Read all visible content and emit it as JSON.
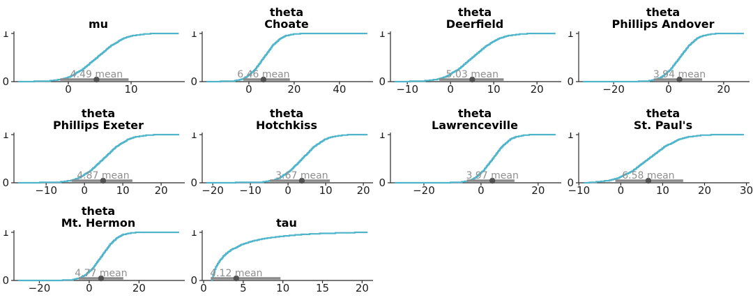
{
  "figure": {
    "description": "Grid of posterior cumulative distribution plots with mean point estimates and interval bars",
    "columns": 4,
    "rows": 3
  },
  "style": {
    "curve_color": "#4db4c9",
    "interval_color": "#8a8a8a",
    "point_color": "#515151",
    "mean_text_color": "#8f8f8f",
    "axis_color": "#282828",
    "tick_label_color": "#1c1c1c",
    "title_color": "#000000",
    "background": "#ffffff"
  },
  "chart_data": [
    {
      "id": "mu",
      "type": "ecdf",
      "title": "mu",
      "mean": 4.49,
      "mean_label": "4.49 mean",
      "x_range": [
        -8.67,
        18.33
      ],
      "x_ticks": [
        0,
        10
      ],
      "y_ticks": [
        0,
        1
      ],
      "interval": [
        -1.3,
        9.6
      ],
      "points": [
        [
          -8.0,
          0
        ],
        [
          -3.3,
          0.01
        ],
        [
          -1.0,
          0.05
        ],
        [
          0.2,
          0.1
        ],
        [
          2.2,
          0.25
        ],
        [
          4.5,
          0.5
        ],
        [
          6.8,
          0.75
        ],
        [
          8.8,
          0.9
        ],
        [
          10.0,
          0.95
        ],
        [
          12.3,
          0.99
        ],
        [
          13.5,
          0.998
        ],
        [
          17.6,
          1
        ]
      ]
    },
    {
      "id": "theta-choate",
      "type": "ecdf",
      "title": "theta\nChoate",
      "mean": 6.46,
      "mean_label": "6.46 mean",
      "x_range": [
        -20.6,
        54.2
      ],
      "x_ticks": [
        0,
        20,
        40
      ],
      "y_ticks": [
        0,
        1
      ],
      "interval": [
        -2.5,
        18.1
      ],
      "points": [
        [
          -18.7,
          0
        ],
        [
          -7.1,
          0.01
        ],
        [
          -3.1,
          0.05
        ],
        [
          -1.0,
          0.1
        ],
        [
          2.6,
          0.25
        ],
        [
          6.5,
          0.5
        ],
        [
          10.4,
          0.75
        ],
        [
          13.9,
          0.9
        ],
        [
          16.0,
          0.95
        ],
        [
          20.0,
          0.99
        ],
        [
          24,
          0.998
        ],
        [
          52.3,
          1
        ]
      ]
    },
    {
      "id": "theta-deerfield",
      "type": "ecdf",
      "title": "theta\nDeerfield",
      "mean": 5.03,
      "mean_label": "5.03 mean",
      "x_range": [
        -13.9,
        25.3
      ],
      "x_ticks": [
        -10,
        0,
        10,
        20
      ],
      "y_ticks": [
        0,
        1
      ],
      "interval": [
        -2.6,
        12.3
      ],
      "points": [
        [
          -12.9,
          0
        ],
        [
          -6.4,
          0.01
        ],
        [
          -3.0,
          0.05
        ],
        [
          -1.2,
          0.1
        ],
        [
          1.7,
          0.25
        ],
        [
          5.0,
          0.5
        ],
        [
          8.3,
          0.75
        ],
        [
          11.3,
          0.9
        ],
        [
          13.1,
          0.95
        ],
        [
          16.4,
          0.99
        ],
        [
          18.5,
          0.998
        ],
        [
          24.3,
          1
        ]
      ]
    },
    {
      "id": "theta-phillips-andover",
      "type": "ecdf",
      "title": "theta\nPhillips Andover",
      "mean": 3.94,
      "mean_label": "3.94 mean",
      "x_range": [
        -32.7,
        28.9
      ],
      "x_ticks": [
        -20,
        0,
        20
      ],
      "y_ticks": [
        0,
        1
      ],
      "interval": [
        -5.3,
        12.2
      ],
      "points": [
        [
          -31.2,
          0
        ],
        [
          -12,
          0.004
        ],
        [
          -7.7,
          0.01
        ],
        [
          -4.3,
          0.05
        ],
        [
          -2.5,
          0.1
        ],
        [
          0.6,
          0.25
        ],
        [
          3.9,
          0.5
        ],
        [
          7.3,
          0.75
        ],
        [
          10.3,
          0.9
        ],
        [
          12.2,
          0.95
        ],
        [
          15.6,
          0.99
        ],
        [
          18,
          0.998
        ],
        [
          27.4,
          1
        ]
      ]
    },
    {
      "id": "theta-phillips-exeter",
      "type": "ecdf",
      "title": "theta\nPhillips Exeter",
      "mean": 4.87,
      "mean_label": "4.87 mean",
      "x_range": [
        -18.4,
        25.8
      ],
      "x_ticks": [
        -10,
        0,
        10,
        20
      ],
      "y_ticks": [
        0,
        1
      ],
      "interval": [
        -3.3,
        12.5
      ],
      "points": [
        [
          -17.3,
          0
        ],
        [
          -6.8,
          0.01
        ],
        [
          -3.4,
          0.05
        ],
        [
          -1.5,
          0.1
        ],
        [
          1.5,
          0.25
        ],
        [
          4.9,
          0.5
        ],
        [
          8.2,
          0.75
        ],
        [
          11.3,
          0.9
        ],
        [
          13.1,
          0.95
        ],
        [
          16.5,
          0.99
        ],
        [
          19,
          0.998
        ],
        [
          24.7,
          1
        ]
      ]
    },
    {
      "id": "theta-hotchkiss",
      "type": "ecdf",
      "title": "theta\nHotchkiss",
      "mean": 3.67,
      "mean_label": "3.67 mean",
      "x_range": [
        -22.8,
        22.2
      ],
      "x_ticks": [
        -20,
        -10,
        0,
        10,
        20
      ],
      "y_ticks": [
        0,
        1
      ],
      "interval": [
        -4.8,
        11.1
      ],
      "points": [
        [
          -21.7,
          0
        ],
        [
          -7.3,
          0.01
        ],
        [
          -4.1,
          0.05
        ],
        [
          -2.3,
          0.1
        ],
        [
          0.5,
          0.25
        ],
        [
          3.7,
          0.5
        ],
        [
          6.8,
          0.75
        ],
        [
          9.7,
          0.9
        ],
        [
          11.4,
          0.95
        ],
        [
          14.6,
          0.99
        ],
        [
          16.5,
          0.998
        ],
        [
          21.1,
          1
        ]
      ]
    },
    {
      "id": "theta-lawrenceville",
      "type": "ecdf",
      "title": "theta\nLawrenceville",
      "mean": 3.97,
      "mean_label": "3.97 mean",
      "x_range": [
        -31.7,
        27.6
      ],
      "x_ticks": [
        -20,
        0,
        20
      ],
      "y_ticks": [
        0,
        1
      ],
      "interval": [
        -4.9,
        11.7
      ],
      "points": [
        [
          -30.2,
          0
        ],
        [
          -12,
          0.004
        ],
        [
          -7.2,
          0.01
        ],
        [
          -3.9,
          0.05
        ],
        [
          -2.2,
          0.1
        ],
        [
          0.7,
          0.25
        ],
        [
          4.0,
          0.5
        ],
        [
          7.2,
          0.75
        ],
        [
          10.1,
          0.9
        ],
        [
          11.9,
          0.95
        ],
        [
          15.2,
          0.99
        ],
        [
          17.5,
          0.998
        ],
        [
          26.1,
          1
        ]
      ]
    },
    {
      "id": "theta-st-pauls",
      "type": "ecdf",
      "title": "theta\nSt. Paul's",
      "mean": 6.58,
      "mean_label": "6.58 mean",
      "x_range": [
        -10.05,
        30.4
      ],
      "x_ticks": [
        -10,
        0,
        10,
        20,
        30
      ],
      "y_ticks": [
        0,
        1
      ],
      "interval": [
        -1.3,
        14.9
      ],
      "points": [
        [
          -8.8,
          0
        ],
        [
          -6.5,
          0.01
        ],
        [
          -2.6,
          0.05
        ],
        [
          -0.6,
          0.1
        ],
        [
          2.8,
          0.25
        ],
        [
          6.6,
          0.5
        ],
        [
          10.4,
          0.75
        ],
        [
          13.8,
          0.9
        ],
        [
          15.8,
          0.95
        ],
        [
          19.6,
          0.99
        ],
        [
          22.5,
          0.998
        ],
        [
          29.4,
          1
        ]
      ]
    },
    {
      "id": "theta-mt-hermon",
      "type": "ecdf",
      "title": "theta\nMt. Hermon",
      "mean": 4.77,
      "mean_label": "4.77 mean",
      "x_range": [
        -30.2,
        37.8
      ],
      "x_ticks": [
        -20,
        0,
        20
      ],
      "y_ticks": [
        0,
        1
      ],
      "interval": [
        -4.2,
        13.7
      ],
      "points": [
        [
          -28.5,
          0
        ],
        [
          -12,
          0.004
        ],
        [
          -7.3,
          0.01
        ],
        [
          -3.8,
          0.05
        ],
        [
          -1.9,
          0.1
        ],
        [
          1.3,
          0.25
        ],
        [
          4.8,
          0.5
        ],
        [
          8.3,
          0.75
        ],
        [
          11.4,
          0.9
        ],
        [
          13.3,
          0.95
        ],
        [
          16.9,
          0.99
        ],
        [
          19.5,
          0.998
        ],
        [
          36.1,
          1
        ]
      ]
    },
    {
      "id": "tau",
      "type": "ecdf",
      "title": "tau",
      "mean": 4.12,
      "mean_label": "4.12 mean",
      "x_range": [
        -0.18,
        21.2
      ],
      "x_ticks": [
        0,
        5,
        10,
        15,
        20
      ],
      "y_ticks": [
        0,
        1
      ],
      "interval": [
        0.9,
        9.7
      ],
      "points": [
        [
          0.95,
          0
        ],
        [
          1.2,
          0.12
        ],
        [
          1.5,
          0.28
        ],
        [
          2,
          0.41
        ],
        [
          2.5,
          0.51
        ],
        [
          3,
          0.58
        ],
        [
          3.5,
          0.64
        ],
        [
          4,
          0.68
        ],
        [
          5,
          0.76
        ],
        [
          6,
          0.81
        ],
        [
          7,
          0.85
        ],
        [
          8,
          0.88
        ],
        [
          9,
          0.9
        ],
        [
          10,
          0.92
        ],
        [
          12,
          0.95
        ],
        [
          14,
          0.97
        ],
        [
          16,
          0.982
        ],
        [
          18,
          0.99
        ],
        [
          19.5,
          0.997
        ],
        [
          20.7,
          1
        ]
      ]
    }
  ]
}
